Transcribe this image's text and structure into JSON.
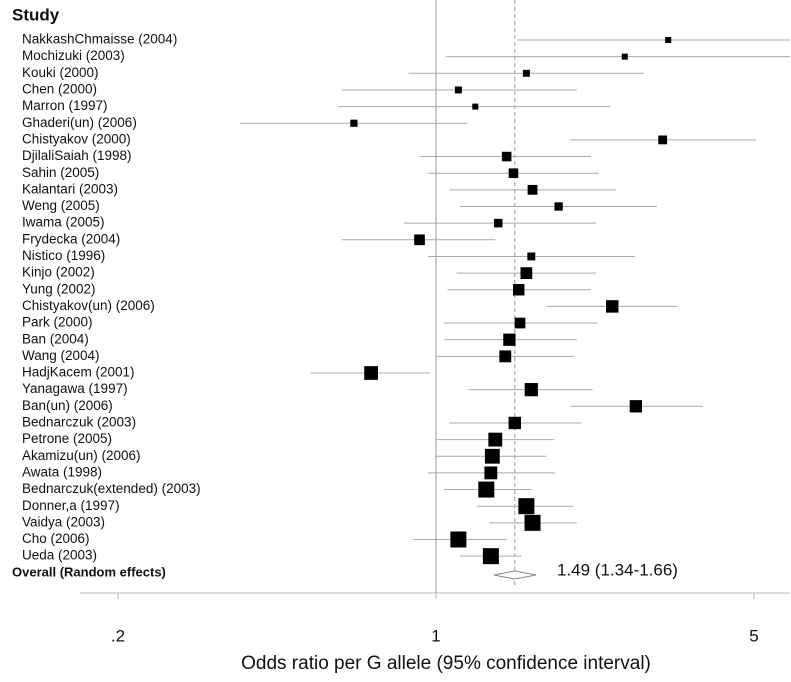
{
  "chart_data": {
    "type": "forest",
    "header": "Study",
    "xlabel": "Odds ratio per G allele (95% confidence interval)",
    "log_x": true,
    "xlim": [
      0.165,
      6
    ],
    "xticks": [
      {
        "value": 0.2,
        "label": ".2"
      },
      1,
      5
    ],
    "reference_line": 1,
    "color": "#000000",
    "categories": [
      "NakkashChmaisse (2004)",
      "Mochizuki (2003)",
      "Kouki (2000)",
      "Chen (2000)",
      "Marron (1997)",
      "Ghaderi(un) (2006)",
      "Chistyakov (2000)",
      "DjilaliSaiah (1998)",
      "Sahin (2005)",
      "Kalantari (2003)",
      "Weng (2005)",
      "Iwama (2005)",
      "Frydecka (2004)",
      "Nistico (1996)",
      "Kinjo (2002)",
      "Yung (2002)",
      "Chistyakov(un) (2006)",
      "Park (2000)",
      "Ban (2004)",
      "Wang (2004)",
      "HadjKacem (2001)",
      "Yanagawa (1997)",
      "Ban(un) (2006)",
      "Bednarczuk (2003)",
      "Petrone (2005)",
      "Akamizu(un) (2006)",
      "Awata (1998)",
      "Bednarczuk(extended) (2003)",
      "Donner,a (1997)",
      "Vaidya (2003)",
      "Cho (2006)",
      "Ueda (2003)"
    ],
    "values": [
      3.24,
      2.6,
      1.58,
      1.12,
      1.22,
      0.66,
      3.15,
      1.43,
      1.48,
      1.63,
      1.86,
      1.37,
      0.92,
      1.62,
      1.58,
      1.52,
      2.44,
      1.53,
      1.45,
      1.42,
      0.72,
      1.62,
      2.75,
      1.49,
      1.35,
      1.33,
      1.32,
      1.29,
      1.58,
      1.63,
      1.12,
      1.32
    ],
    "lower": [
      1.51,
      1.05,
      0.87,
      0.62,
      0.61,
      0.37,
      1.97,
      0.92,
      0.96,
      1.07,
      1.13,
      0.85,
      0.62,
      0.96,
      1.11,
      1.06,
      1.75,
      1.04,
      1.04,
      1.0,
      0.53,
      1.18,
      1.97,
      1.07,
      1.0,
      1.0,
      0.96,
      1.04,
      1.23,
      1.31,
      0.89,
      1.13
    ],
    "upper": [
      6,
      6,
      2.86,
      2.04,
      2.42,
      1.17,
      5.05,
      2.19,
      2.28,
      2.49,
      3.06,
      2.25,
      1.35,
      2.74,
      2.25,
      2.19,
      3.4,
      2.26,
      2.04,
      2.01,
      0.97,
      2.21,
      3.86,
      2.09,
      1.82,
      1.75,
      1.83,
      1.62,
      2.0,
      2.04,
      1.43,
      1.54
    ],
    "overall": {
      "label": "Overall (Random effects)",
      "value": 1.49,
      "lower": 1.34,
      "upper": 1.66,
      "value_label": "1.49 (1.34-1.66)"
    }
  }
}
